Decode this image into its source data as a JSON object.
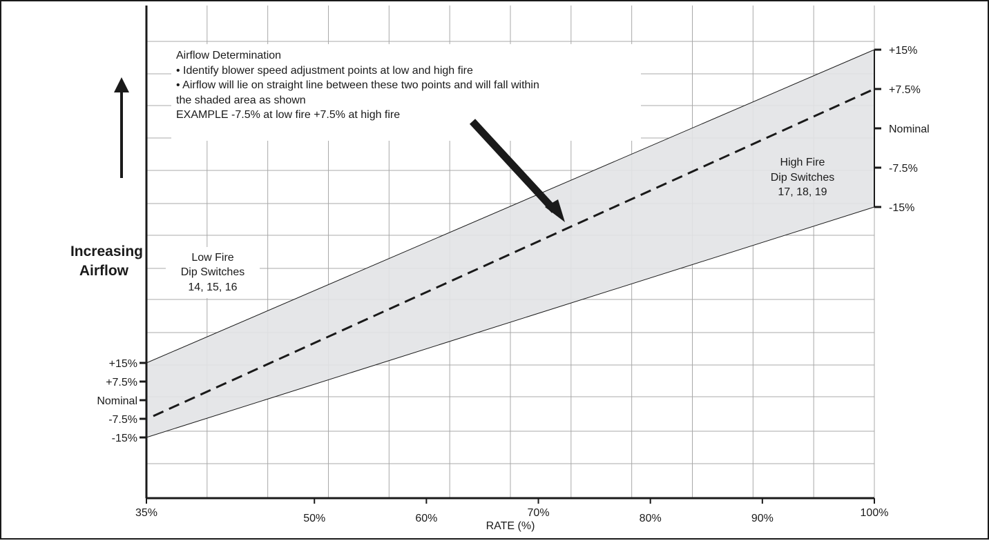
{
  "chart_data": {
    "type": "area",
    "xlabel": "RATE (%)",
    "x_ticks": [
      "35%",
      "50%",
      "60%",
      "70%",
      "80%",
      "90%",
      "100%"
    ],
    "x_tick_values": [
      35,
      50,
      60,
      70,
      80,
      90,
      100
    ],
    "xlim": [
      35,
      100
    ],
    "ylabel": [
      "Increasing",
      "Airflow"
    ],
    "low_fire_ticks": [
      "+15%",
      "+7.5%",
      "Nominal",
      "-7.5%",
      "-15%"
    ],
    "high_fire_ticks": [
      "+15%",
      "+7.5%",
      "Nominal",
      "-7.5%",
      "-15%"
    ],
    "tick_values": [
      15,
      7.5,
      0,
      -7.5,
      -15
    ],
    "band": {
      "upper": {
        "low_fire": 15,
        "high_fire": 15
      },
      "lower": {
        "low_fire": -15,
        "high_fire": -15
      }
    },
    "example_line": {
      "low_fire": -7.5,
      "high_fire": 7.5
    },
    "grid": true
  },
  "annotations": {
    "note_title": "Airflow Determination",
    "note_line1": "• Identify blower speed adjustment points at low and high fire",
    "note_line2": "• Airflow will lie on straight line between these two points and will fall within",
    "note_line3": "the shaded area as shown",
    "note_line4": "EXAMPLE  -7.5% at low fire +7.5% at high fire",
    "low_fire_label": [
      "Low Fire",
      "Dip Switches",
      "14, 15, 16"
    ],
    "high_fire_label": [
      "High Fire",
      "Dip Switches",
      "17, 18, 19"
    ]
  },
  "colors": {
    "band_fill": "#e2e3e5",
    "grid": "#a8a8a8",
    "ink": "#1a1a1a"
  }
}
